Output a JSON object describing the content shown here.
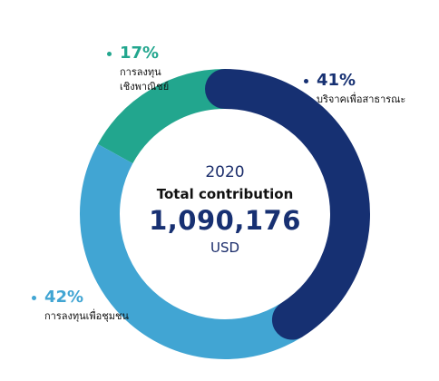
{
  "chart_data": {
    "type": "pie",
    "year": "2020",
    "title": "Total contribution",
    "total_value": "1,090,176",
    "unit": "USD",
    "slices": [
      {
        "key": "commercial",
        "percent": 17,
        "label": "17%",
        "name_lines": [
          "การลงทุน",
          "เชิงพาณิชย์"
        ],
        "color": "#22a68e"
      },
      {
        "key": "charity",
        "percent": 41,
        "label": "41%",
        "name_lines": [
          "บริจาคเพื่อสาธารณะ"
        ],
        "color": "#163072"
      },
      {
        "key": "community",
        "percent": 42,
        "label": "42%",
        "name_lines": [
          "การลงทุนเพื่อชุมชน"
        ],
        "color": "#41a5d3"
      }
    ]
  }
}
